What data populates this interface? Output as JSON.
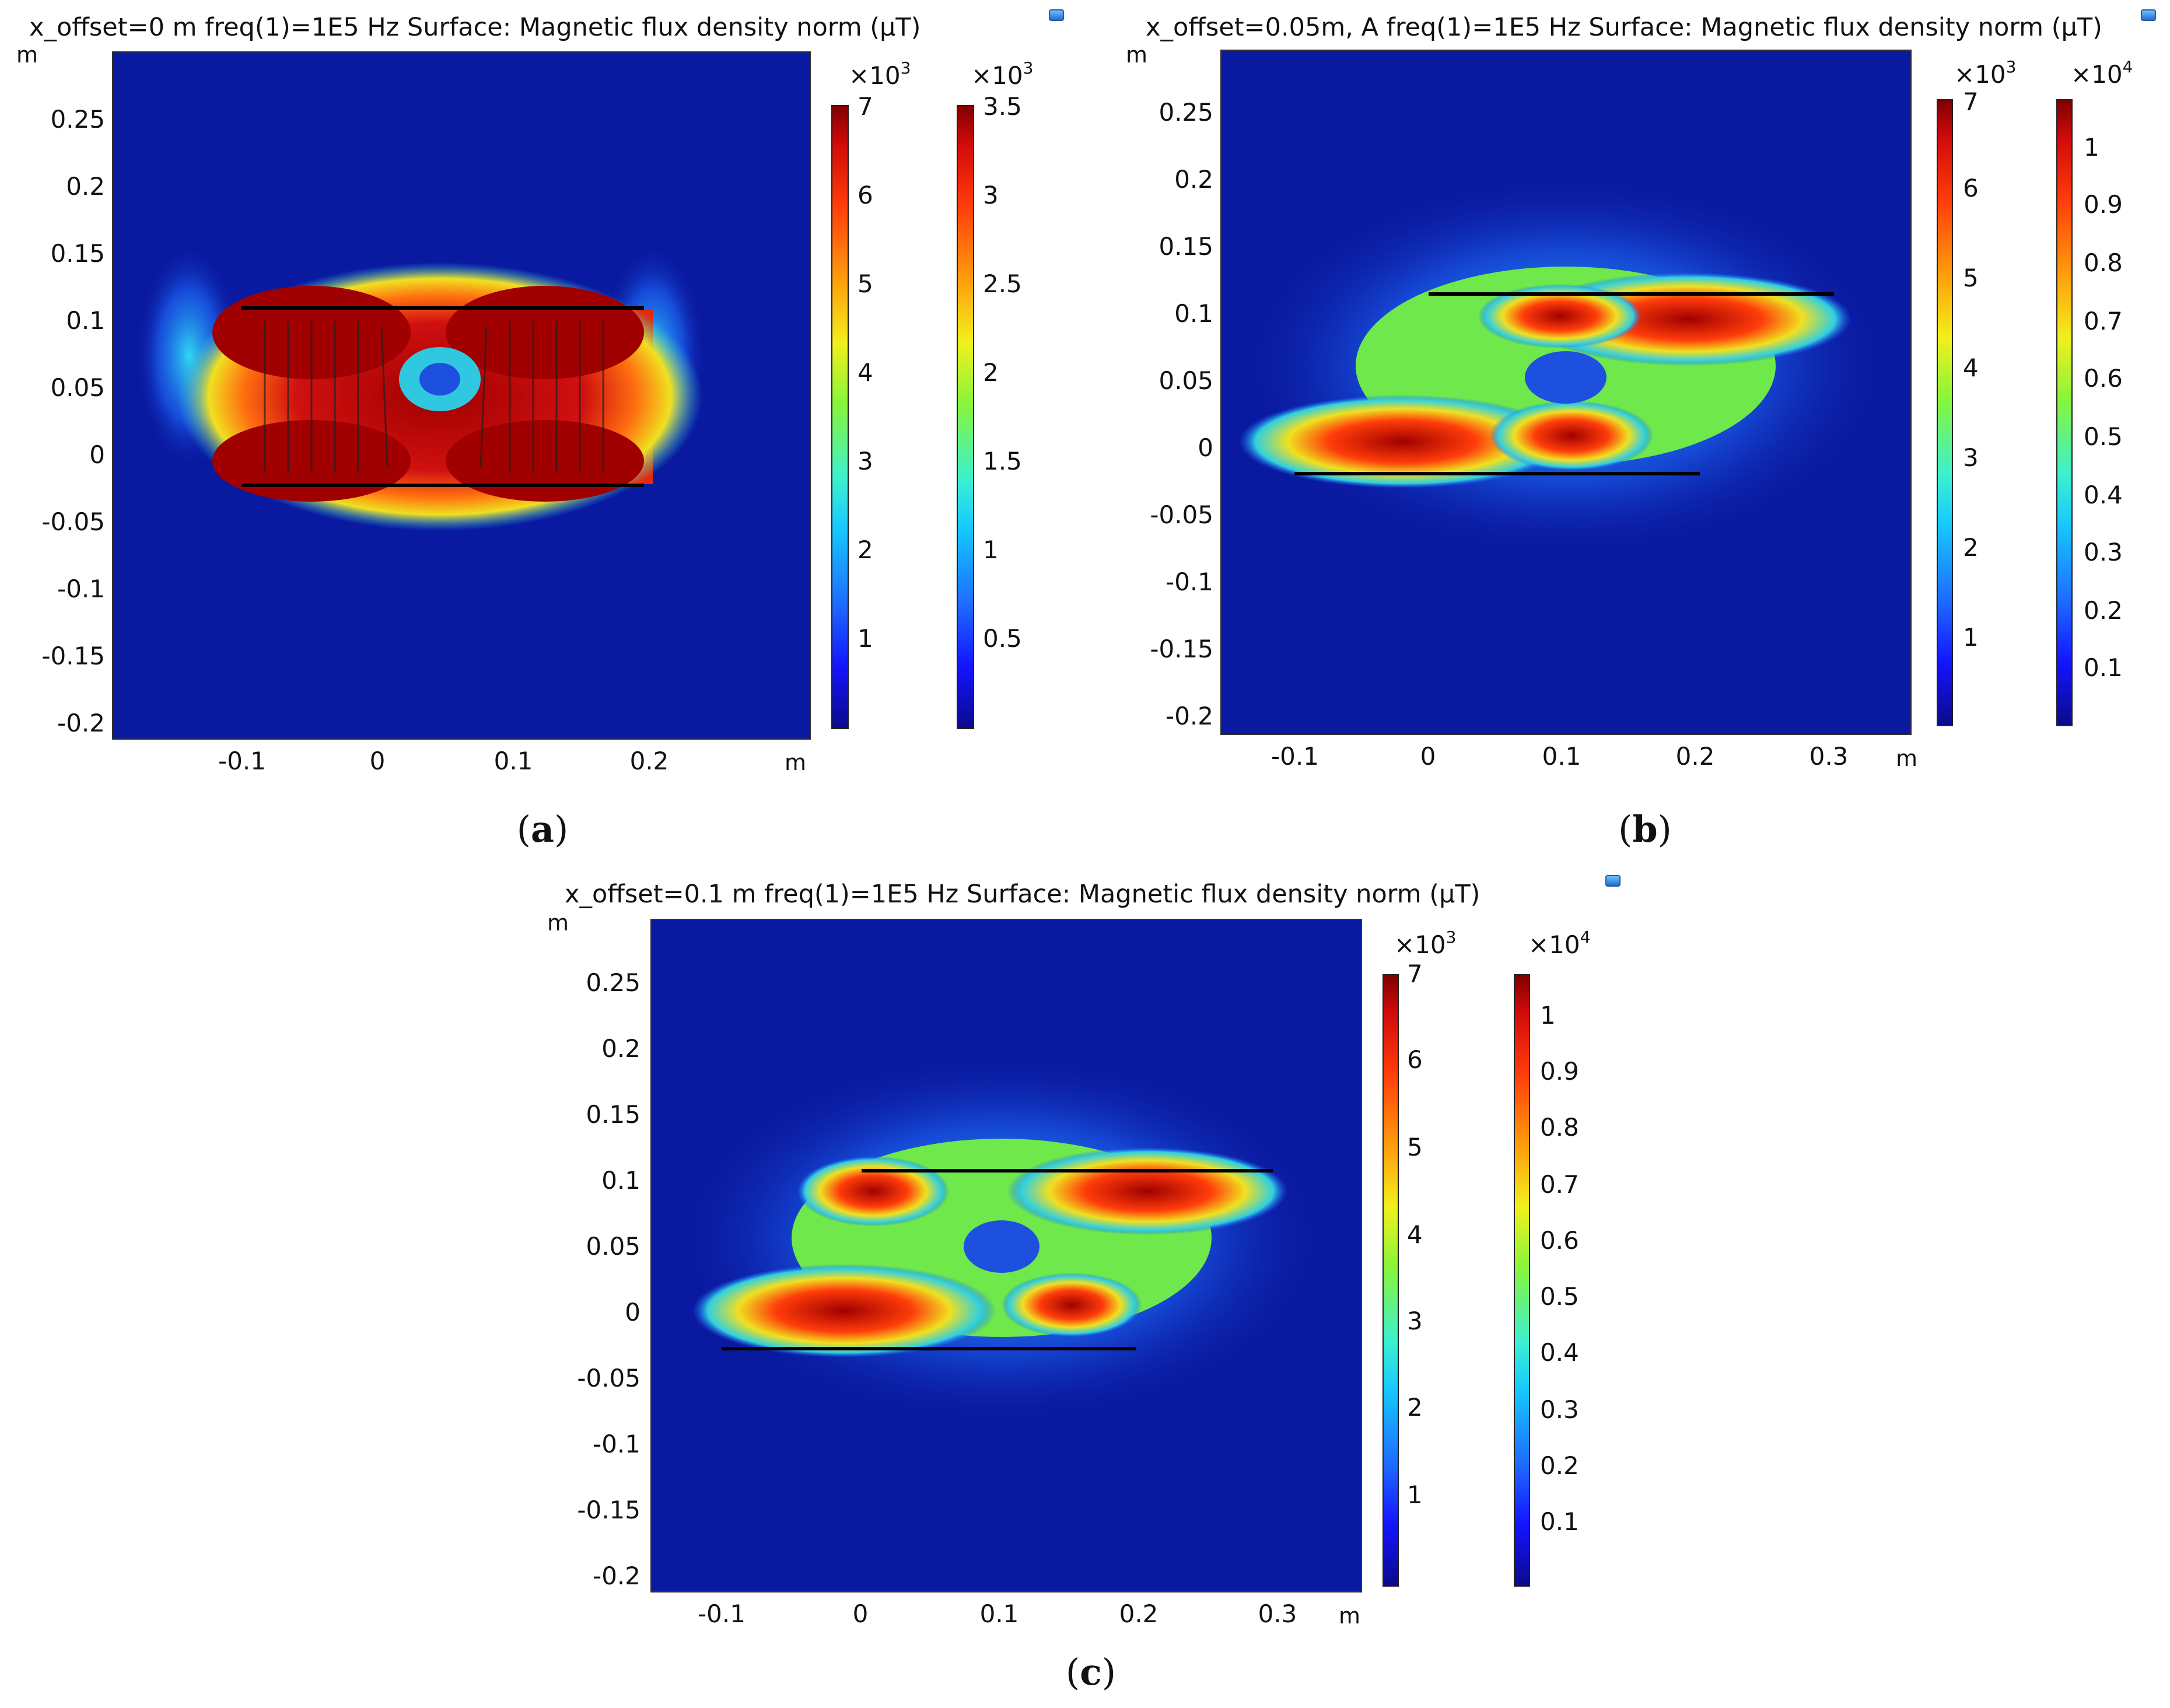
{
  "panels": [
    {
      "id": "a",
      "title": "x_offset=0 m freq(1)=1E5 Hz Surface: Magnetic flux density norm (μT)",
      "caption": "a",
      "axis_unit_y": "m",
      "axis_unit_x": "m",
      "y_ticks": [
        "0.25",
        "0.2",
        "0.15",
        "0.1",
        "0.05",
        "0",
        "-0.05",
        "-0.1",
        "-0.15",
        "-0.2"
      ],
      "x_ticks": [
        "-0.1",
        "0",
        "0.1",
        "0.2"
      ],
      "colorbars": [
        {
          "multiplier": "×10",
          "exp": "3",
          "ticks": [
            "7",
            "6",
            "5",
            "4",
            "3",
            "2",
            "1"
          ]
        },
        {
          "multiplier": "×10",
          "exp": "3",
          "ticks": [
            "3.5",
            "3",
            "2.5",
            "2",
            "1.5",
            "1",
            "0.5"
          ]
        }
      ]
    },
    {
      "id": "b",
      "title": "x_offset=0.05m,  A freq(1)=1E5 Hz Surface: Magnetic flux density norm (μT)",
      "caption": "b",
      "axis_unit_y": "m",
      "axis_unit_x": "m",
      "y_ticks": [
        "0.25",
        "0.2",
        "0.15",
        "0.1",
        "0.05",
        "0",
        "-0.05",
        "-0.1",
        "-0.15",
        "-0.2"
      ],
      "x_ticks": [
        "-0.1",
        "0",
        "0.1",
        "0.2",
        "0.3"
      ],
      "colorbars": [
        {
          "multiplier": "×10",
          "exp": "3",
          "ticks": [
            "7",
            "6",
            "5",
            "4",
            "3",
            "2",
            "1"
          ]
        },
        {
          "multiplier": "×10",
          "exp": "4",
          "ticks": [
            "1",
            "0.9",
            "0.8",
            "0.7",
            "0.6",
            "0.5",
            "0.4",
            "0.3",
            "0.2",
            "0.1"
          ]
        }
      ]
    },
    {
      "id": "c",
      "title": "x_offset=0.1 m freq(1)=1E5 Hz Surface: Magnetic flux density norm (μT)",
      "caption": "c",
      "axis_unit_y": "m",
      "axis_unit_x": "m",
      "y_ticks": [
        "0.25",
        "0.2",
        "0.15",
        "0.1",
        "0.05",
        "0",
        "-0.05",
        "-0.1",
        "-0.15",
        "-0.2"
      ],
      "x_ticks": [
        "-0.1",
        "0",
        "0.1",
        "0.2",
        "0.3"
      ],
      "colorbars": [
        {
          "multiplier": "×10",
          "exp": "3",
          "ticks": [
            "7",
            "6",
            "5",
            "4",
            "3",
            "2",
            "1"
          ]
        },
        {
          "multiplier": "×10",
          "exp": "4",
          "ticks": [
            "1",
            "0.9",
            "0.8",
            "0.7",
            "0.6",
            "0.5",
            "0.4",
            "0.3",
            "0.2",
            "0.1"
          ]
        }
      ]
    }
  ],
  "colors": {
    "background_field": "#0a1aa0",
    "hot": "#a00000",
    "mid": "#f0e020",
    "cool": "#20c8f0"
  }
}
